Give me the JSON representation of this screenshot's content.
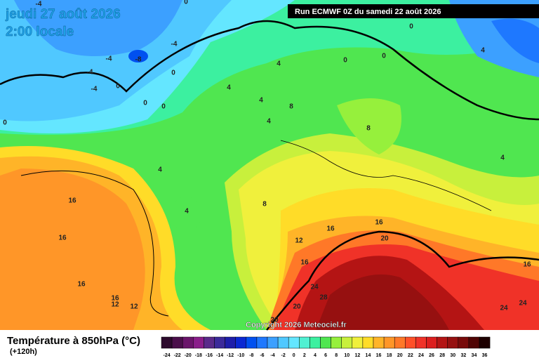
{
  "header": {
    "date": "jeudi 27 août 2026",
    "time": "2:00 locale",
    "run": "Run ECMWF 0Z du samedi 22 août 2026"
  },
  "copyright": "Copyright 2026 Meteociel.fr",
  "legend": {
    "title": "Température à 850hPa (°C)",
    "lead": "(+120h)",
    "ticks": [
      -24,
      -22,
      -20,
      -18,
      -16,
      -14,
      -12,
      -10,
      -8,
      -6,
      -4,
      -2,
      0,
      2,
      4,
      6,
      8,
      10,
      12,
      14,
      16,
      18,
      20,
      22,
      24,
      26,
      28,
      30,
      32,
      34,
      36
    ],
    "colors": [
      "#2d0a2d",
      "#4b0f4b",
      "#6b156b",
      "#8a1e8a",
      "#5a2a8a",
      "#3c2a9a",
      "#1e1eaa",
      "#0a28d2",
      "#0050f0",
      "#1e78ff",
      "#3ca0ff",
      "#50c8ff",
      "#64e6ff",
      "#50f0d2",
      "#3cf0a0",
      "#50e650",
      "#96f03c",
      "#c8f03c",
      "#f0f03c",
      "#ffdc28",
      "#ffb428",
      "#ff9628",
      "#ff7828",
      "#ff5028",
      "#f03228",
      "#dc1e1e",
      "#b41414",
      "#961010",
      "#780a0a",
      "#500505",
      "#1e0000"
    ]
  },
  "contour_labels": [
    0,
    -4,
    -4,
    -4,
    -8,
    -4,
    -4,
    0,
    0,
    0,
    0,
    0,
    4,
    0,
    0,
    4,
    0,
    4,
    4,
    8,
    4,
    8,
    4,
    4,
    4,
    8,
    16,
    16,
    16,
    16,
    12,
    12,
    12,
    16,
    16,
    20,
    16,
    24,
    28,
    20,
    20,
    16,
    24,
    24
  ]
}
